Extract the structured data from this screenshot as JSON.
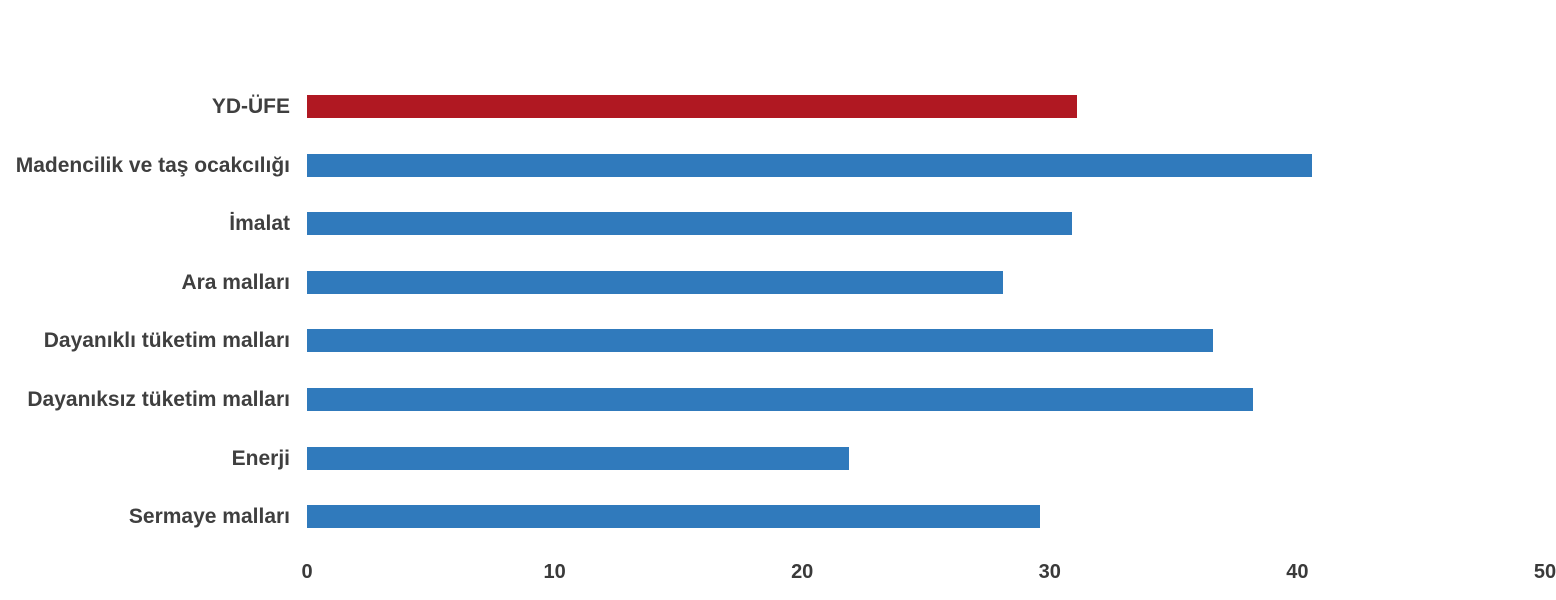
{
  "chart_data": {
    "type": "bar",
    "orientation": "horizontal",
    "title": "",
    "xlabel": "",
    "ylabel": "",
    "categories": [
      "YD-ÜFE",
      "Madencilik ve taş ocakcılığı",
      "İmalat",
      "Ara malları",
      "Dayanıklı tüketim malları",
      "Dayanıksız tüketim malları",
      "Enerji",
      "Sermaye malları"
    ],
    "values": [
      31.1,
      40.6,
      30.9,
      28.1,
      36.6,
      38.2,
      21.9,
      29.6
    ],
    "bar_colors": [
      "#B01822",
      "#307ABC",
      "#307ABC",
      "#307ABC",
      "#307ABC",
      "#307ABC",
      "#307ABC",
      "#307ABC"
    ],
    "xlim": [
      0,
      50
    ],
    "x_ticks": [
      "0",
      "10",
      "20",
      "30",
      "40",
      "50"
    ],
    "x_tick_values": [
      0,
      10,
      20,
      30,
      40,
      50
    ],
    "grid": false,
    "legend": false
  },
  "colors": {
    "highlight_bar": "#B01822",
    "default_bar": "#307ABC",
    "label_text": "#3f3f3f",
    "tick_text": "#3a3a3a",
    "background": "#ffffff"
  }
}
